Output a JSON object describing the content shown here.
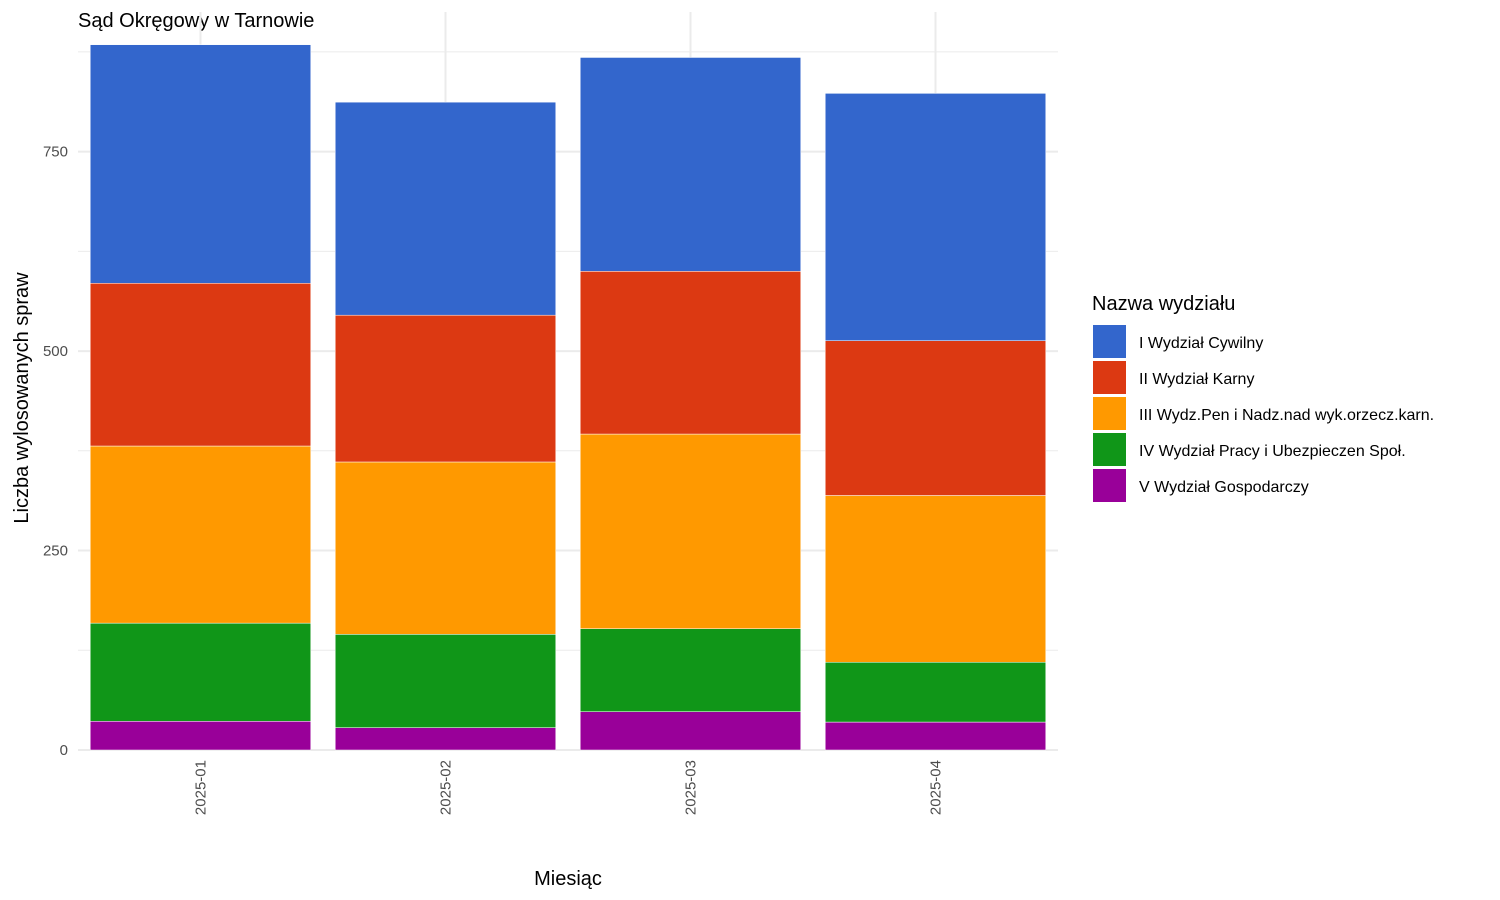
{
  "chart_data": {
    "type": "bar",
    "stacked": true,
    "title": "Sąd Okręgowy w Tarnowie",
    "xlabel": "Miesiąc",
    "ylabel": "Liczba wylosowanych spraw",
    "categories": [
      "2025-01",
      "2025-02",
      "2025-03",
      "2025-04"
    ],
    "yticks": [
      0,
      250,
      500,
      750
    ],
    "ylim": [
      0,
      925
    ],
    "grid": true,
    "legend": {
      "title": "Nazwa wydziału",
      "position": "right"
    },
    "series": [
      {
        "name": "V Wydział Gospodarczy",
        "color": "#990099",
        "values": [
          36,
          28,
          48,
          35
        ]
      },
      {
        "name": "IV Wydział Pracy i Ubezpieczen Społ.",
        "color": "#109618",
        "values": [
          123,
          117,
          104,
          75
        ]
      },
      {
        "name": "III Wydz.Pen i Nadz.nad wyk.orzecz.karn.",
        "color": "#FF9900",
        "values": [
          222,
          216,
          244,
          209
        ]
      },
      {
        "name": "II Wydział Karny",
        "color": "#DC3912",
        "values": [
          204,
          184,
          204,
          194
        ]
      },
      {
        "name": "I Wydział Cywilny",
        "color": "#3366CC",
        "values": [
          299,
          267,
          268,
          310
        ]
      }
    ]
  }
}
